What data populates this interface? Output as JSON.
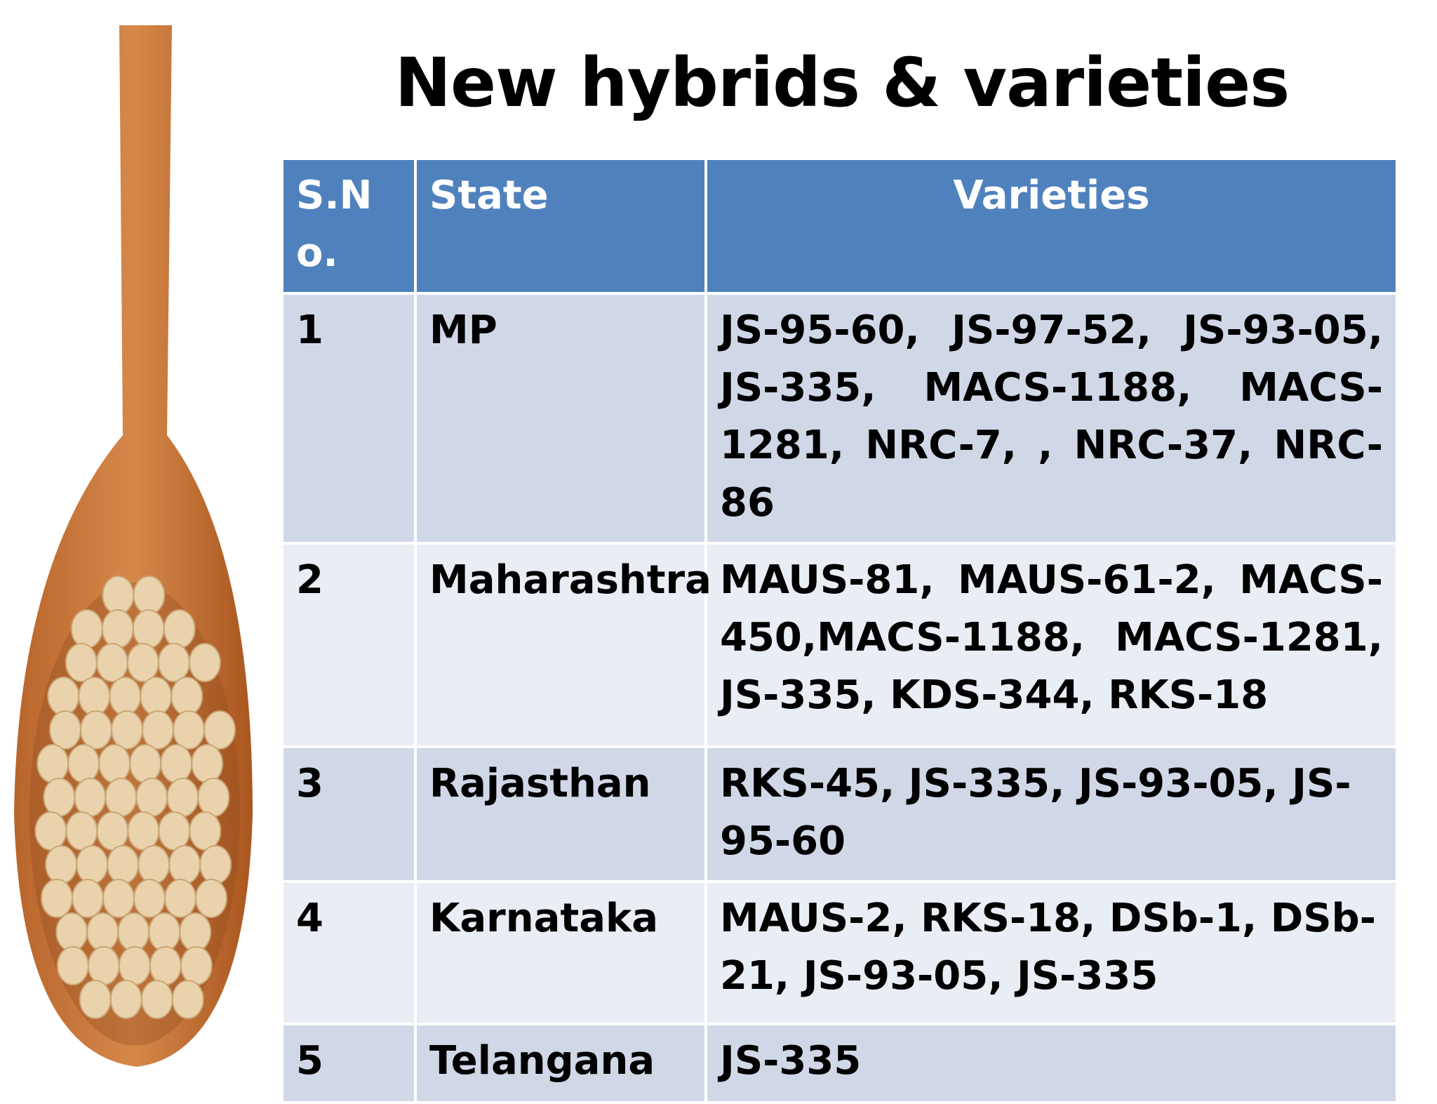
{
  "title": "New hybrids & varieties",
  "table": {
    "header": [
      "S.No.",
      "State",
      "Varieties"
    ],
    "rows": [
      [
        "1",
        "MP",
        "JS-95-60, JS-97-52, JS-93-05, JS-335, MACS-1188, MACS-1281, NRC-7, , NRC-37, NRC-86"
      ],
      [
        "2",
        "Maharashtra",
        "MAUS-81, MAUS-61-2, MACS-450,MACS-1188, MACS-1281, JS-335, KDS-344, RKS-18"
      ],
      [
        "3",
        "Rajasthan",
        "RKS-45, JS-335, JS-93-05, JS-95-60"
      ],
      [
        "4",
        "Karnataka",
        "MAUS-2, RKS-18, DSb-1, DSb-21, JS-93-05, JS-335"
      ],
      [
        "5",
        "Telangana",
        "JS-335"
      ]
    ]
  }
}
